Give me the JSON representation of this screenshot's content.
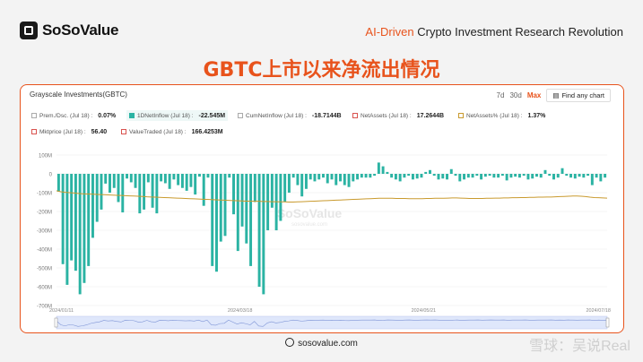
{
  "brand": {
    "logo_text": "SoSoValue",
    "tagline_highlight": "AI-Driven",
    "tagline_rest": " Crypto Investment Research Revolution"
  },
  "page_title": "GBTC上市以来净流出情况",
  "card": {
    "title": "Grayscale Investments(GBTC)",
    "ranges": [
      "7d",
      "30d",
      "Max"
    ],
    "active_range": "Max",
    "find_button": "Find any chart",
    "legend": [
      {
        "label": "Prem./Dsc. (Jul 18) :",
        "value": "0.07%",
        "checked": false,
        "color": "#aaaaaa"
      },
      {
        "label": "1DNetInflow (Jul 18) :",
        "value": "-22.545M",
        "checked": true,
        "color": "#2bb3a3"
      },
      {
        "label": "CumNetInflow (Jul 18) :",
        "value": "-18.7144B",
        "checked": false,
        "color": "#aaaaaa"
      },
      {
        "label": "NetAssets (Jul 18) :",
        "value": "17.2644B",
        "checked": false,
        "color": "#d9534f"
      },
      {
        "label": "NetAssets% (Jul 18) :",
        "value": "1.37%",
        "checked": false,
        "color": "#c99a2e"
      },
      {
        "label": "Mktprice (Jul 18) :",
        "value": "56.40",
        "checked": false,
        "color": "#d9534f"
      },
      {
        "label": "ValueTraded (Jul 18) :",
        "value": "166.4253M",
        "checked": false,
        "color": "#d9534f"
      }
    ],
    "watermark_main": "SoSoValue",
    "watermark_sub": "sosovalue.com"
  },
  "footer": {
    "url": "sosovalue.com"
  },
  "corner_watermark": "雪球：吴说Real",
  "chart_data": {
    "type": "bar",
    "y_tick_labels": [
      "100M",
      "0",
      "-100M",
      "-200M",
      "-300M",
      "-400M",
      "-500M",
      "-600M",
      "-700M"
    ],
    "ylim": [
      -700,
      100
    ],
    "y_unit": "M",
    "x_tick_labels": [
      "2024/01/11",
      "2024/03/18",
      "2024/05/21",
      "2024/07/18"
    ],
    "series": [
      {
        "name": "1DNetInflow",
        "color": "#2bb3a3",
        "values": [
          -95,
          -480,
          -590,
          -460,
          -515,
          -640,
          -580,
          -490,
          -340,
          -255,
          -190,
          -52,
          -100,
          -75,
          -150,
          -205,
          -25,
          -45,
          -75,
          -210,
          -190,
          -45,
          -180,
          -210,
          -40,
          -50,
          -80,
          -30,
          -60,
          -75,
          -90,
          -70,
          -110,
          -15,
          -170,
          -20,
          -490,
          -520,
          -360,
          -330,
          -20,
          -215,
          -410,
          -280,
          -370,
          -490,
          -150,
          -600,
          -640,
          -300,
          -180,
          -300,
          -250,
          -150,
          -100,
          -20,
          -60,
          -120,
          -80,
          -30,
          -40,
          -30,
          -20,
          -50,
          -30,
          -60,
          -40,
          -60,
          -70,
          -40,
          -30,
          -20,
          -20,
          -20,
          -10,
          60,
          40,
          10,
          -20,
          -30,
          -40,
          -20,
          -10,
          -30,
          -25,
          -20,
          10,
          20,
          -10,
          -30,
          -25,
          -30,
          25,
          -10,
          -40,
          -30,
          -20,
          -20,
          -10,
          -30,
          -15,
          -10,
          -20,
          -20,
          -10,
          -35,
          -20,
          -15,
          -20,
          -10,
          -30,
          -25,
          -15,
          -20,
          20,
          -10,
          -30,
          -20,
          30,
          -10,
          -20,
          -25,
          -15,
          -20,
          -10,
          -60,
          -20,
          -40,
          -20
        ]
      },
      {
        "name": "Line",
        "color": "#c99a2e",
        "values": [
          -90,
          -95,
          -98,
          -100,
          -102,
          -104,
          -106,
          -107,
          -108,
          -109,
          -110,
          -111,
          -112,
          -113,
          -114,
          -115,
          -116,
          -117,
          -118,
          -119,
          -120,
          -122,
          -123,
          -124,
          -125,
          -126,
          -127,
          -128,
          -129,
          -130,
          -131,
          -132,
          -133,
          -134,
          -135,
          -136,
          -137,
          -138,
          -139,
          -140,
          -141,
          -142,
          -143,
          -144,
          -145,
          -145,
          -146,
          -146,
          -147,
          -147,
          -148,
          -148,
          -149,
          -149,
          -150,
          -150,
          -149,
          -148,
          -147,
          -146,
          -145,
          -144,
          -143,
          -142,
          -141,
          -140,
          -139,
          -138,
          -137,
          -136,
          -135,
          -134,
          -133,
          -132,
          -131,
          -130,
          -130,
          -130,
          -130,
          -131,
          -131,
          -131,
          -132,
          -132,
          -132,
          -132,
          -131,
          -131,
          -130,
          -130,
          -130,
          -129,
          -128,
          -128,
          -129,
          -130,
          -131,
          -131,
          -131,
          -131,
          -130,
          -130,
          -129,
          -129,
          -128,
          -128,
          -127,
          -127,
          -126,
          -126,
          -125,
          -125,
          -124,
          -124,
          -123,
          -123,
          -122,
          -121,
          -120,
          -119,
          -118,
          -118,
          -119,
          -121,
          -124,
          -126,
          -127,
          -128,
          -129
        ]
      }
    ],
    "grid": true
  }
}
